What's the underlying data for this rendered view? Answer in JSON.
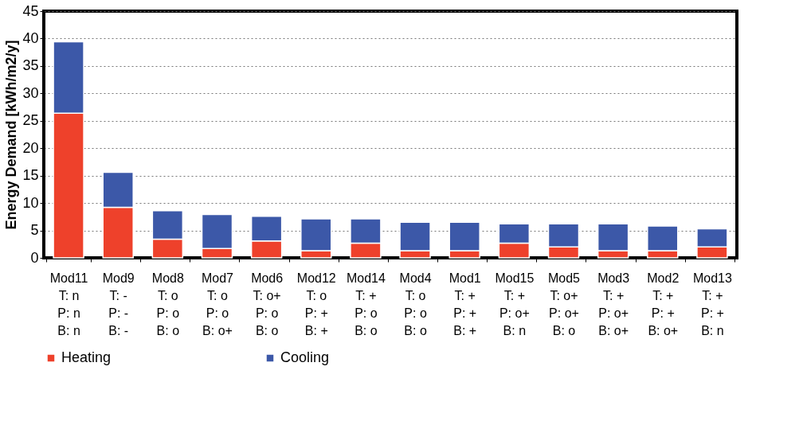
{
  "chart_data": {
    "type": "bar",
    "stacked": true,
    "ylabel": "Energy Demand [kWh/m2/y]",
    "categories": [
      "Mod11\nT: n\nP: n\nB: n",
      "Mod9\nT: -\nP: -\nB: -",
      "Mod8\nT: o\nP: o\nB: o",
      "Mod7\nT: o\nP: o\nB: o+",
      "Mod6\nT: o+\nP: o\nB: o",
      "Mod12\nT: o\nP: +\nB: +",
      "Mod14\nT: +\nP: o\nB: o",
      "Mod4\nT: o\nP: o\nB: o",
      "Mod1\nT: +\nP: +\nB: +",
      "Mod15\nT: +\nP: o+\nB: n",
      "Mod5\nT: o+\nP: o+\nB: o",
      "Mod3\nT: +\nP: o+\nB: o+",
      "Mod2\nT: +\nP: +\nB: o+",
      "Mod13\nT: +\nP: +\nB: n"
    ],
    "series": [
      {
        "name": "Heating",
        "color": "#ee412b",
        "values": [
          26.4,
          9.2,
          3.4,
          1.7,
          3.1,
          1.3,
          2.7,
          1.3,
          1.3,
          2.7,
          2.0,
          1.3,
          1.3,
          2.0
        ]
      },
      {
        "name": "Cooling",
        "color": "#3c58a8",
        "values": [
          13.0,
          6.4,
          5.2,
          6.2,
          4.5,
          5.8,
          4.4,
          5.2,
          5.2,
          3.5,
          4.2,
          4.9,
          4.5,
          3.3
        ]
      }
    ],
    "ylim": [
      0,
      45
    ],
    "yticks": [
      0,
      5,
      10,
      15,
      20,
      25,
      30,
      35,
      40,
      45
    ],
    "grid": "y",
    "legend": "bottom"
  }
}
